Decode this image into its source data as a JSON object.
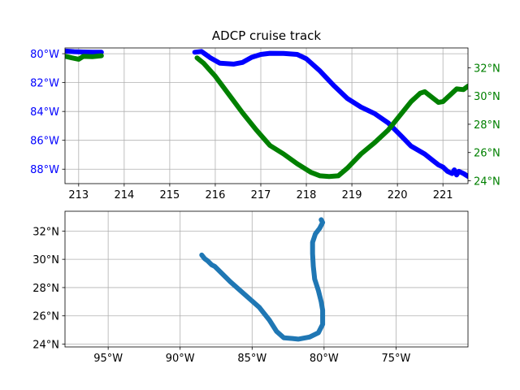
{
  "figure": {
    "title": "ADCP cruise track",
    "colors": {
      "longitude": "#0000ff",
      "latitude": "#008000",
      "track": "#1f77b4",
      "grid": "#b0b0b0",
      "axes": "#000000"
    }
  },
  "chart_data": [
    {
      "type": "line",
      "title": "ADCP cruise track",
      "xlabel": "",
      "ylabel": "",
      "xlim": [
        212.7,
        221.55
      ],
      "ylim_left": [
        -89.0,
        -79.6
      ],
      "ylim_right": [
        23.8,
        33.4
      ],
      "grid": true,
      "x_ticks": [
        213,
        214,
        215,
        216,
        217,
        218,
        219,
        220,
        221
      ],
      "x_tick_labels": [
        "213",
        "214",
        "215",
        "216",
        "217",
        "218",
        "219",
        "220",
        "221"
      ],
      "left_ticks": [
        -88,
        -86,
        -84,
        -82,
        -80
      ],
      "left_tick_labels": [
        "88°W",
        "86°W",
        "84°W",
        "82°W",
        "80°W"
      ],
      "right_ticks": [
        24,
        26,
        28,
        30,
        32
      ],
      "right_tick_labels": [
        "24°N",
        "26°N",
        "28°N",
        "30°N",
        "32°N"
      ],
      "series": [
        {
          "axis": "left",
          "color": "#0000ff",
          "segments": [
            [
              [
                212.72,
                -79.82
              ],
              [
                212.9,
                -79.86
              ],
              [
                213.1,
                -79.88
              ],
              [
                213.3,
                -79.9
              ],
              [
                213.5,
                -79.9
              ]
            ],
            [
              [
                215.55,
                -79.9
              ],
              [
                215.7,
                -79.85
              ],
              [
                215.9,
                -80.3
              ],
              [
                216.1,
                -80.65
              ],
              [
                216.4,
                -80.72
              ],
              [
                216.6,
                -80.6
              ],
              [
                216.8,
                -80.25
              ],
              [
                217.0,
                -80.05
              ],
              [
                217.2,
                -79.97
              ],
              [
                217.5,
                -79.98
              ],
              [
                217.8,
                -80.05
              ],
              [
                218.0,
                -80.35
              ],
              [
                218.3,
                -81.2
              ],
              [
                218.6,
                -82.2
              ],
              [
                218.9,
                -83.1
              ],
              [
                219.2,
                -83.7
              ],
              [
                219.5,
                -84.15
              ],
              [
                219.8,
                -84.8
              ],
              [
                220.1,
                -85.75
              ],
              [
                220.3,
                -86.4
              ],
              [
                220.6,
                -86.95
              ],
              [
                220.8,
                -87.45
              ],
              [
                220.9,
                -87.7
              ],
              [
                221.0,
                -87.85
              ],
              [
                221.1,
                -88.15
              ],
              [
                221.2,
                -88.3
              ],
              [
                221.25,
                -88.05
              ],
              [
                221.3,
                -88.4
              ],
              [
                221.35,
                -88.15
              ],
              [
                221.45,
                -88.3
              ],
              [
                221.55,
                -88.5
              ]
            ]
          ]
        },
        {
          "axis": "right",
          "color": "#008000",
          "segments": [
            [
              [
                212.72,
                32.8
              ],
              [
                212.85,
                32.7
              ],
              [
                213.0,
                32.6
              ],
              [
                213.1,
                32.8
              ],
              [
                213.3,
                32.78
              ],
              [
                213.5,
                32.85
              ]
            ],
            [
              [
                215.6,
                32.7
              ],
              [
                215.75,
                32.3
              ],
              [
                216.0,
                31.4
              ],
              [
                216.3,
                30.1
              ],
              [
                216.6,
                28.8
              ],
              [
                216.9,
                27.6
              ],
              [
                217.2,
                26.5
              ],
              [
                217.5,
                25.9
              ],
              [
                217.8,
                25.2
              ],
              [
                218.1,
                24.6
              ],
              [
                218.3,
                24.35
              ],
              [
                218.5,
                24.3
              ],
              [
                218.7,
                24.35
              ],
              [
                218.9,
                24.9
              ],
              [
                219.2,
                25.9
              ],
              [
                219.5,
                26.7
              ],
              [
                219.8,
                27.6
              ],
              [
                220.1,
                28.8
              ],
              [
                220.3,
                29.6
              ],
              [
                220.5,
                30.2
              ],
              [
                220.6,
                30.3
              ],
              [
                220.8,
                29.8
              ],
              [
                220.9,
                29.55
              ],
              [
                221.0,
                29.6
              ],
              [
                221.2,
                30.2
              ],
              [
                221.3,
                30.5
              ],
              [
                221.45,
                30.45
              ],
              [
                221.55,
                30.7
              ]
            ]
          ]
        }
      ]
    },
    {
      "type": "line",
      "title": "",
      "xlabel": "",
      "ylabel": "",
      "xlim": [
        -98.0,
        -70.0
      ],
      "ylim": [
        23.8,
        33.4
      ],
      "grid": true,
      "x_ticks": [
        -95,
        -90,
        -85,
        -80,
        -75
      ],
      "x_tick_labels": [
        "95°W",
        "90°W",
        "85°W",
        "80°W",
        "75°W"
      ],
      "y_ticks": [
        24,
        26,
        28,
        30,
        32
      ],
      "y_tick_labels": [
        "24°N",
        "26°N",
        "28°N",
        "30°N",
        "32°N"
      ],
      "series": [
        {
          "color": "#1f77b4",
          "points": [
            [
              -88.5,
              30.3
            ],
            [
              -88.3,
              30.05
            ],
            [
              -88.1,
              29.9
            ],
            [
              -87.8,
              29.6
            ],
            [
              -87.6,
              29.5
            ],
            [
              -87.2,
              29.1
            ],
            [
              -86.5,
              28.4
            ],
            [
              -85.5,
              27.5
            ],
            [
              -84.5,
              26.6
            ],
            [
              -83.8,
              25.7
            ],
            [
              -83.3,
              24.9
            ],
            [
              -82.8,
              24.45
            ],
            [
              -82.2,
              24.4
            ],
            [
              -81.8,
              24.35
            ],
            [
              -81.0,
              24.5
            ],
            [
              -80.4,
              24.8
            ],
            [
              -80.1,
              25.4
            ],
            [
              -80.1,
              26.4
            ],
            [
              -80.2,
              27.0
            ],
            [
              -80.4,
              27.8
            ],
            [
              -80.65,
              28.6
            ],
            [
              -80.75,
              29.5
            ],
            [
              -80.8,
              30.4
            ],
            [
              -80.8,
              31.2
            ],
            [
              -80.6,
              31.8
            ],
            [
              -80.3,
              32.2
            ],
            [
              -80.1,
              32.6
            ],
            [
              -80.2,
              32.8
            ]
          ]
        }
      ]
    }
  ]
}
